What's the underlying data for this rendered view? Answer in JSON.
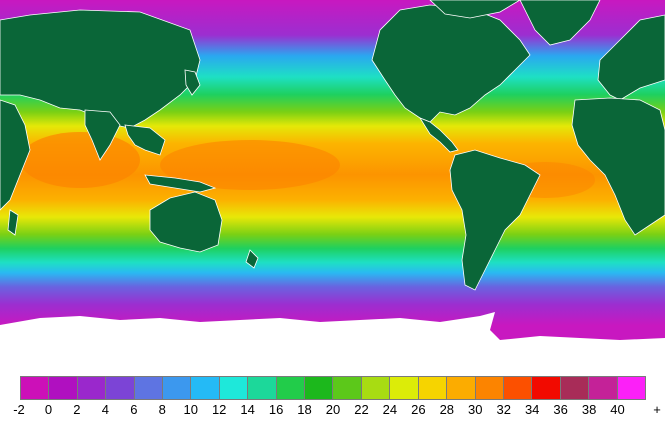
{
  "legend": {
    "colors": [
      "#cc10b8",
      "#b010c0",
      "#9a28cc",
      "#7c44d6",
      "#5e74e2",
      "#3c98ee",
      "#24baf6",
      "#1ee8da",
      "#1cd89a",
      "#22cc4a",
      "#1cb81c",
      "#5cc81a",
      "#a8dc12",
      "#dcec08",
      "#f6d400",
      "#fcac00",
      "#fc8400",
      "#fc5000",
      "#f20a00",
      "#a82c58",
      "#c42298",
      "#fc20f8"
    ],
    "tick_labels": [
      "-2",
      "0",
      "2",
      "4",
      "6",
      "8",
      "10",
      "12",
      "14",
      "16",
      "18",
      "20",
      "22",
      "24",
      "26",
      "28",
      "30",
      "32",
      "34",
      "36",
      "38",
      "40",
      "+"
    ]
  },
  "map": {
    "land_color": "#0a6638",
    "border_color": "#ffffff",
    "ice_color": "#ffffff",
    "ocean_gradient": [
      "#c818c0",
      "#9c2ed0",
      "#6a62e0",
      "#2ab8f2",
      "#1ee0c4",
      "#1ed060",
      "#66cc14",
      "#e4e808",
      "#fcb400",
      "#fc8c00"
    ]
  }
}
